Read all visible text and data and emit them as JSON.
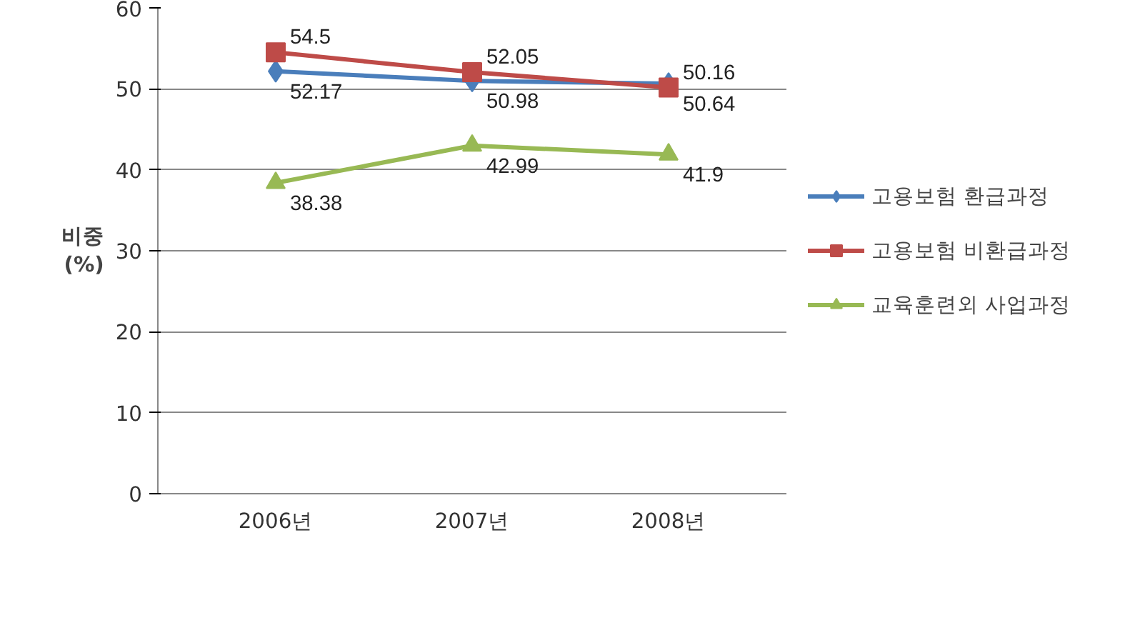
{
  "chart_data": {
    "type": "line",
    "ylabel": "비중\n(%)",
    "categories": [
      "2006년",
      "2007년",
      "2008년"
    ],
    "series": [
      {
        "name": "고용보험 환급과정",
        "color": "#4a7ebb",
        "values": [
          52.17,
          50.98,
          50.64
        ],
        "marker": "diamond"
      },
      {
        "name": "고용보험 비환급과정",
        "color": "#be4b48",
        "values": [
          54.5,
          52.05,
          50.16
        ],
        "marker": "square"
      },
      {
        "name": "교육훈련외 사업과정",
        "color": "#98b954",
        "values": [
          38.38,
          42.99,
          41.9
        ],
        "marker": "triangle"
      }
    ],
    "ylim": [
      0,
      60
    ],
    "yticks": [
      0,
      10,
      20,
      30,
      40,
      50,
      60
    ],
    "grid": "y",
    "legend": "right",
    "data_labels": true
  }
}
